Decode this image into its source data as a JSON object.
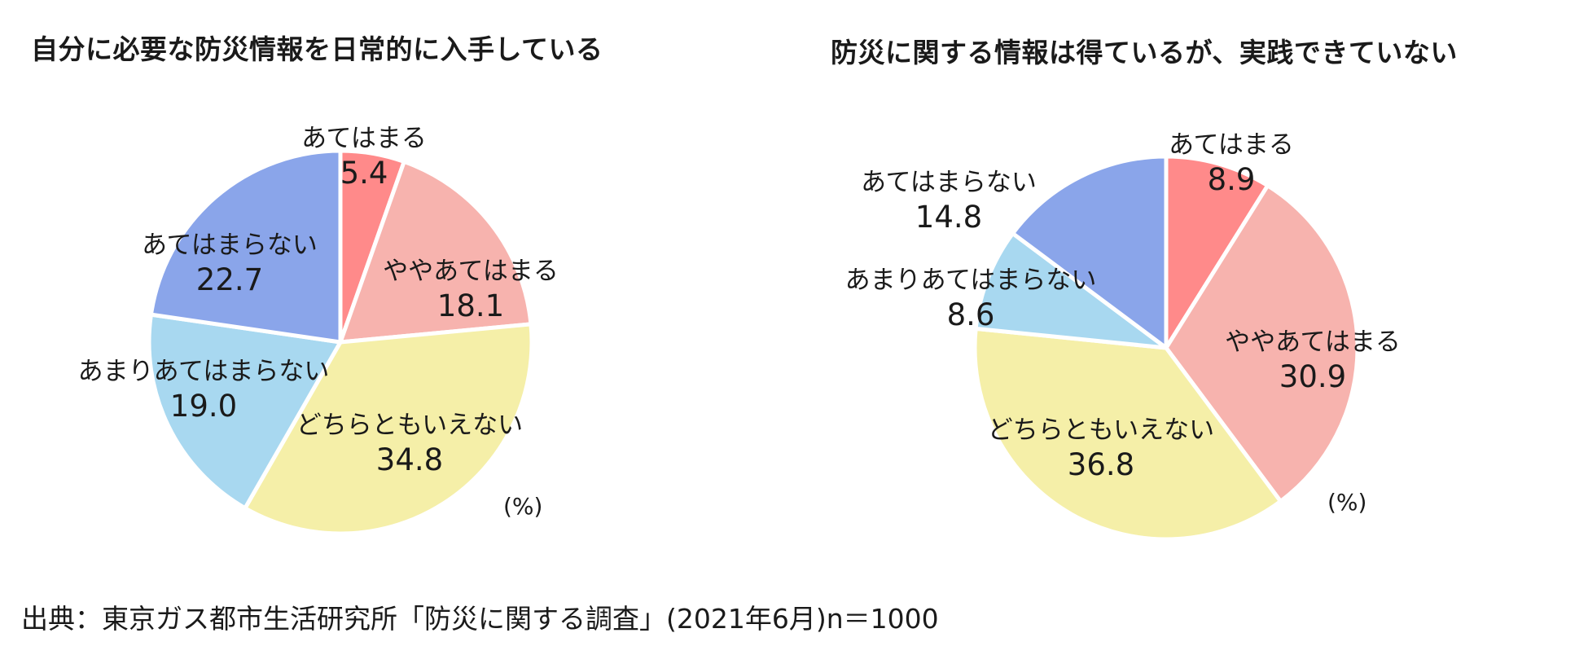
{
  "chart_data": [
    {
      "type": "pie",
      "title": "自分に必要な防災情報を日常的に入手している",
      "unit": "(%)",
      "slices": [
        {
          "label": "あてはまる",
          "value": 5.4,
          "display": "5.4",
          "color": "#ff8a8a"
        },
        {
          "label": "ややあてはまる",
          "value": 18.1,
          "display": "18.1",
          "color": "#f7b3ae"
        },
        {
          "label": "どちらともいえない",
          "value": 34.8,
          "display": "34.8",
          "color": "#f5efa8"
        },
        {
          "label": "あまりあてはまらない",
          "value": 19.0,
          "display": "19.0",
          "color": "#a8d8f0"
        },
        {
          "label": "あてはまらない",
          "value": 22.7,
          "display": "22.7",
          "color": "#8aa5ea"
        }
      ]
    },
    {
      "type": "pie",
      "title": "防災に関する情報は得ているが、実践できていない",
      "unit": "(%)",
      "slices": [
        {
          "label": "あてはまる",
          "value": 8.9,
          "display": "8.9",
          "color": "#ff8a8a"
        },
        {
          "label": "ややあてはまる",
          "value": 30.9,
          "display": "30.9",
          "color": "#f7b3ae"
        },
        {
          "label": "どちらともいえない",
          "value": 36.8,
          "display": "36.8",
          "color": "#f5efa8"
        },
        {
          "label": "あまりあてはまらない",
          "value": 8.6,
          "display": "8.6",
          "color": "#a8d8f0"
        },
        {
          "label": "あてはまらない",
          "value": 14.8,
          "display": "14.8",
          "color": "#8aa5ea"
        }
      ]
    }
  ],
  "source": "出典：東京ガス都市生活研究所「防災に関する調査」(2021年6月)n＝1000"
}
